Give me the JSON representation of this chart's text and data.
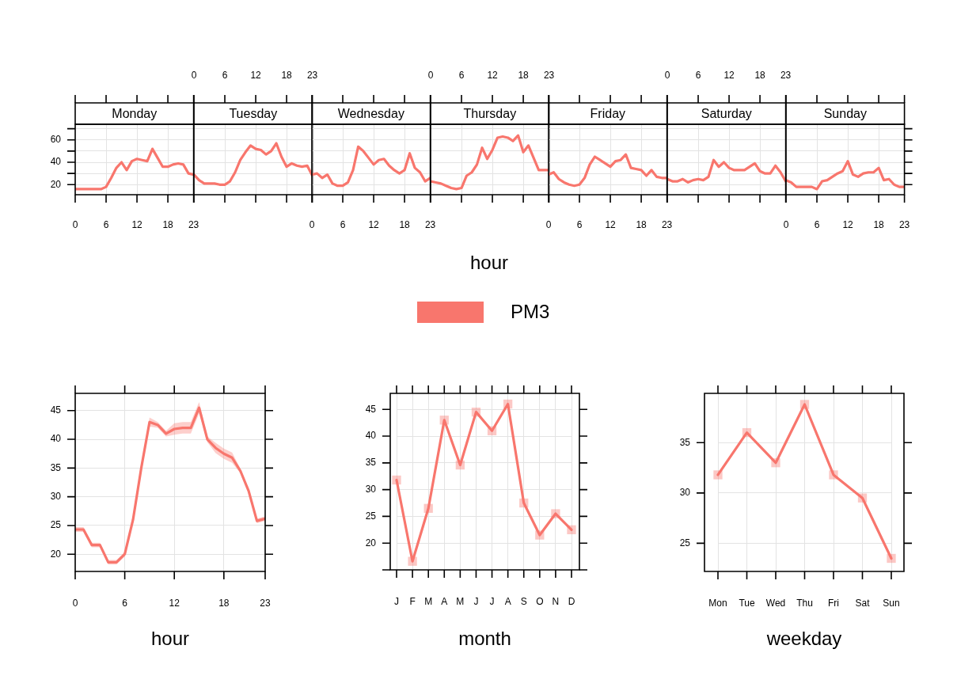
{
  "chart_data": [
    {
      "type": "line",
      "title": "Monday",
      "x": [
        0,
        1,
        2,
        3,
        4,
        5,
        6,
        7,
        8,
        9,
        10,
        11,
        12,
        13,
        14,
        15,
        16,
        17,
        18,
        19,
        20,
        21,
        22,
        23
      ],
      "xlim": [
        0,
        23
      ],
      "xticks": [
        0,
        6,
        12,
        18,
        23
      ],
      "ylim": [
        11,
        74
      ],
      "yticks": [
        20,
        {
          "value": 30,
          "label": null
        },
        40,
        {
          "value": 50,
          "label": null
        },
        60,
        {
          "value": 70,
          "label": null
        }
      ],
      "grid": true,
      "series": [
        {
          "color": "#f8766d",
          "values": [
            16,
            16,
            16,
            16,
            16,
            16,
            18,
            26,
            35,
            40,
            33,
            41,
            43,
            42,
            41,
            52,
            44,
            36,
            36,
            38,
            39,
            38,
            30,
            29
          ]
        }
      ]
    },
    {
      "type": "line",
      "title": "Tuesday",
      "x": [
        0,
        1,
        2,
        3,
        4,
        5,
        6,
        7,
        8,
        9,
        10,
        11,
        12,
        13,
        14,
        15,
        16,
        17,
        18,
        19,
        20,
        21,
        22,
        23
      ],
      "xlim": [
        0,
        23
      ],
      "xticks": [
        0,
        6,
        12,
        18,
        23
      ],
      "ylim": [
        11,
        74
      ],
      "yticks": [
        20,
        {
          "value": 30,
          "label": null
        },
        40,
        {
          "value": 50,
          "label": null
        },
        60,
        {
          "value": 70,
          "label": null
        }
      ],
      "grid": true,
      "tick_labels": "x",
      "series": [
        {
          "color": "#f8766d",
          "values": [
            29,
            24,
            21,
            21,
            21,
            20,
            20,
            23,
            31,
            42,
            49,
            55,
            52,
            51,
            47,
            50,
            57,
            45,
            36,
            39,
            37,
            36,
            37,
            28
          ]
        }
      ]
    },
    {
      "type": "line",
      "title": "Wednesday",
      "x": [
        0,
        1,
        2,
        3,
        4,
        5,
        6,
        7,
        8,
        9,
        10,
        11,
        12,
        13,
        14,
        15,
        16,
        17,
        18,
        19,
        20,
        21,
        22,
        23
      ],
      "xlim": [
        0,
        23
      ],
      "xticks": [
        0,
        6,
        12,
        18,
        23
      ],
      "ylim": [
        11,
        74
      ],
      "yticks": [
        20,
        {
          "value": 30,
          "label": null
        },
        40,
        {
          "value": 50,
          "label": null
        },
        60,
        {
          "value": 70,
          "label": null
        }
      ],
      "grid": true,
      "tick_labels": "x",
      "series": [
        {
          "color": "#f8766d",
          "values": [
            29,
            30,
            26,
            29,
            21,
            19,
            19,
            22,
            33,
            54,
            50,
            44,
            38,
            42,
            43,
            37,
            33,
            30,
            33,
            48,
            35,
            31,
            23,
            26
          ]
        }
      ]
    },
    {
      "type": "line",
      "title": "Thursday",
      "xlabel": "hour",
      "legend": "bottom",
      "x": [
        0,
        1,
        2,
        3,
        4,
        5,
        6,
        7,
        8,
        9,
        10,
        11,
        12,
        13,
        14,
        15,
        16,
        17,
        18,
        19,
        20,
        21,
        22,
        23
      ],
      "xlim": [
        0,
        23
      ],
      "xticks": [
        0,
        6,
        12,
        18,
        23
      ],
      "ylim": [
        11,
        74
      ],
      "yticks": [
        20,
        {
          "value": 30,
          "label": null
        },
        40,
        {
          "value": 50,
          "label": null
        },
        60,
        {
          "value": 70,
          "label": null
        }
      ],
      "grid": true,
      "tick_labels": "x",
      "series": [
        {
          "name": "PM3",
          "color": "#f8766d",
          "values": [
            23,
            22,
            21,
            19,
            17,
            16,
            17,
            28,
            31,
            38,
            53,
            43,
            51,
            62,
            63,
            62,
            59,
            64,
            49,
            55,
            44,
            33,
            33,
            33
          ]
        }
      ]
    },
    {
      "type": "line",
      "title": "Friday",
      "x": [
        0,
        1,
        2,
        3,
        4,
        5,
        6,
        7,
        8,
        9,
        10,
        11,
        12,
        13,
        14,
        15,
        16,
        17,
        18,
        19,
        20,
        21,
        22,
        23
      ],
      "xlim": [
        0,
        23
      ],
      "xticks": [
        0,
        6,
        12,
        18,
        23
      ],
      "ylim": [
        11,
        74
      ],
      "yticks": [
        20,
        {
          "value": 30,
          "label": null
        },
        40,
        {
          "value": 50,
          "label": null
        },
        60,
        {
          "value": 70,
          "label": null
        }
      ],
      "grid": true,
      "tick_labels": "x",
      "series": [
        {
          "color": "#f8766d",
          "values": [
            29,
            31,
            25,
            22,
            20,
            19,
            20,
            26,
            38,
            45,
            42,
            39,
            36,
            41,
            42,
            47,
            35,
            34,
            33,
            28,
            33,
            27,
            26,
            26
          ]
        }
      ]
    },
    {
      "type": "line",
      "title": "Saturday",
      "x": [
        0,
        1,
        2,
        3,
        4,
        5,
        6,
        7,
        8,
        9,
        10,
        11,
        12,
        13,
        14,
        15,
        16,
        17,
        18,
        19,
        20,
        21,
        22,
        23
      ],
      "xlim": [
        0,
        23
      ],
      "xticks": [
        0,
        6,
        12,
        18,
        23
      ],
      "ylim": [
        11,
        74
      ],
      "yticks": [
        20,
        {
          "value": 30,
          "label": null
        },
        40,
        {
          "value": 50,
          "label": null
        },
        60,
        {
          "value": 70,
          "label": null
        }
      ],
      "grid": true,
      "tick_labels": "x",
      "series": [
        {
          "color": "#f8766d",
          "values": [
            25,
            23,
            23,
            25,
            22,
            24,
            25,
            24,
            27,
            42,
            36,
            40,
            35,
            33,
            33,
            33,
            36,
            39,
            32,
            30,
            30,
            37,
            31,
            23
          ]
        }
      ]
    },
    {
      "type": "line",
      "title": "Sunday",
      "x": [
        0,
        1,
        2,
        3,
        4,
        5,
        6,
        7,
        8,
        9,
        10,
        11,
        12,
        13,
        14,
        15,
        16,
        17,
        18,
        19,
        20,
        21,
        22,
        23
      ],
      "xlim": [
        0,
        23
      ],
      "xticks": [
        0,
        6,
        12,
        18,
        23
      ],
      "ylim": [
        11,
        74
      ],
      "yticks": [
        20,
        {
          "value": 30,
          "label": null
        },
        40,
        {
          "value": 50,
          "label": null
        },
        60,
        {
          "value": 70,
          "label": null
        }
      ],
      "grid": true,
      "tick_labels": "x",
      "series": [
        {
          "color": "#f8766d",
          "values": [
            24,
            22,
            18,
            18,
            18,
            18,
            16,
            23,
            24,
            27,
            30,
            32,
            41,
            29,
            27,
            30,
            31,
            31,
            35,
            24,
            25,
            20,
            18,
            18
          ]
        }
      ]
    },
    {
      "type": "line",
      "xlabel": "hour",
      "x": [
        0,
        1,
        2,
        3,
        4,
        5,
        6,
        7,
        8,
        9,
        10,
        11,
        12,
        13,
        14,
        15,
        16,
        17,
        18,
        19,
        20,
        21,
        22,
        23
      ],
      "xlim": [
        0,
        23
      ],
      "xticks": [
        0,
        6,
        12,
        18,
        23
      ],
      "ylim": [
        17,
        48
      ],
      "yticks": [
        20,
        25,
        30,
        35,
        40,
        45
      ],
      "grid": true,
      "series": [
        {
          "color": "#f8766d",
          "values": [
            24.3,
            24.3,
            21.6,
            21.6,
            18.6,
            18.6,
            20,
            26,
            35,
            43,
            42.5,
            41,
            41.8,
            42,
            42,
            45.5,
            40,
            38.5,
            37.5,
            36.8,
            34.5,
            31,
            25.8,
            26.2
          ],
          "lower": [
            23.9,
            23.9,
            21.2,
            21.2,
            18.2,
            18.2,
            19.6,
            25.6,
            34.6,
            42.2,
            42.0,
            40.5,
            40.8,
            41.0,
            41.0,
            44.5,
            39.5,
            37.6,
            36.6,
            35.9,
            34.1,
            30.6,
            25.4,
            25.8
          ],
          "upper": [
            24.7,
            24.7,
            22.0,
            22.0,
            19.0,
            19.0,
            20.4,
            26.4,
            35.4,
            43.8,
            43.0,
            41.5,
            42.8,
            43.0,
            43.0,
            46.5,
            40.5,
            39.4,
            38.4,
            37.7,
            34.9,
            31.4,
            26.2,
            26.6
          ]
        }
      ]
    },
    {
      "type": "line",
      "xlabel": "month",
      "categories": [
        "J",
        "F",
        "M",
        "A",
        "M",
        "J",
        "J",
        "A",
        "S",
        "O",
        "N",
        "D"
      ],
      "ylim": [
        15,
        48
      ],
      "yticks": [
        {
          "value": 15,
          "label": null
        },
        20,
        25,
        30,
        35,
        40,
        45
      ],
      "grid": true,
      "marker": "square",
      "series": [
        {
          "color": "#f8766d",
          "values": [
            31.8,
            16.6,
            26.5,
            43,
            34.6,
            44.5,
            41,
            46,
            27.5,
            21.5,
            25.5,
            22.5
          ]
        }
      ]
    },
    {
      "type": "line",
      "xlabel": "weekday",
      "categories": [
        "Mon",
        "Tue",
        "Wed",
        "Thu",
        "Fri",
        "Sat",
        "Sun"
      ],
      "ylim": [
        22.2,
        39.9
      ],
      "yticks": [
        25,
        30,
        35
      ],
      "grid": true,
      "marker": "square",
      "series": [
        {
          "color": "#f8766d",
          "values": [
            31.8,
            36,
            33,
            38.8,
            31.8,
            29.5,
            23.5
          ]
        }
      ]
    }
  ]
}
